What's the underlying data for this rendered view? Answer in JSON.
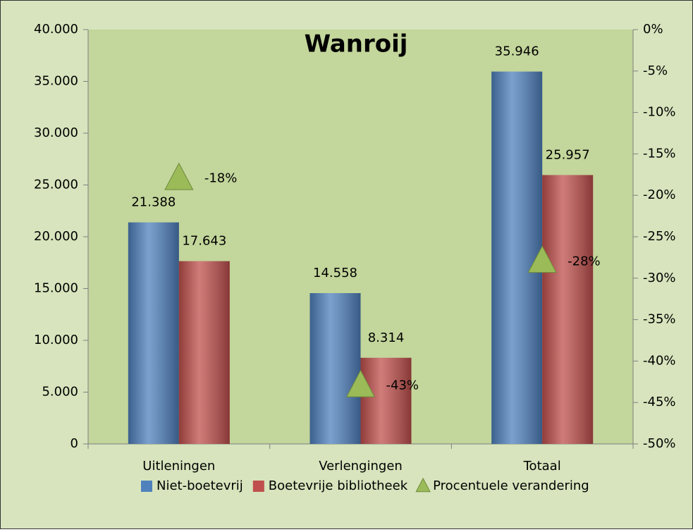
{
  "chart_data": {
    "type": "bar",
    "title": "Wanroij",
    "categories": [
      "Uitleningen",
      "Verlengingen",
      "Totaal"
    ],
    "series": [
      {
        "name": "Niet-boetevrij",
        "color": "#4f81bd",
        "values": [
          21388,
          14558,
          35946
        ],
        "value_labels": [
          "21.388",
          "14.558",
          "35.946"
        ]
      },
      {
        "name": "Boetevrije bibliotheek",
        "color": "#c0504d",
        "values": [
          17643,
          8314,
          25957
        ],
        "value_labels": [
          "17.643",
          "8.314",
          "25.957"
        ]
      },
      {
        "name": "Procentuele verandering",
        "color": "#9bbb59",
        "axis": "y2",
        "values": [
          -18,
          -43,
          -28
        ],
        "value_labels": [
          "-18%",
          "-43%",
          "-28%"
        ]
      }
    ],
    "ylim": [
      0,
      40000
    ],
    "yticks": [
      0,
      {
        "value": 5000,
        "label": "5.000"
      },
      {
        "value": 10000,
        "label": "10.000"
      },
      {
        "value": 15000,
        "label": "15.000"
      },
      {
        "value": 20000,
        "label": "20.000"
      },
      {
        "value": 25000,
        "label": "25.000"
      },
      {
        "value": 30000,
        "label": "30.000"
      },
      {
        "value": 35000,
        "label": "35.000"
      },
      {
        "value": 40000,
        "label": "40.000"
      }
    ],
    "y2lim": [
      -50,
      0
    ],
    "y2ticks": [
      {
        "value": 0,
        "label": "0%"
      },
      {
        "value": -5,
        "label": "-5%"
      },
      {
        "value": -10,
        "label": "-10%"
      },
      {
        "value": -15,
        "label": "-15%"
      },
      {
        "value": -20,
        "label": "-20%"
      },
      {
        "value": -25,
        "label": "-25%"
      },
      {
        "value": -30,
        "label": "-30%"
      },
      {
        "value": -35,
        "label": "-35%"
      },
      {
        "value": -40,
        "label": "-40%"
      },
      {
        "value": -45,
        "label": "-45%"
      },
      {
        "value": -50,
        "label": "-50%"
      }
    ],
    "legend": "bottom"
  }
}
